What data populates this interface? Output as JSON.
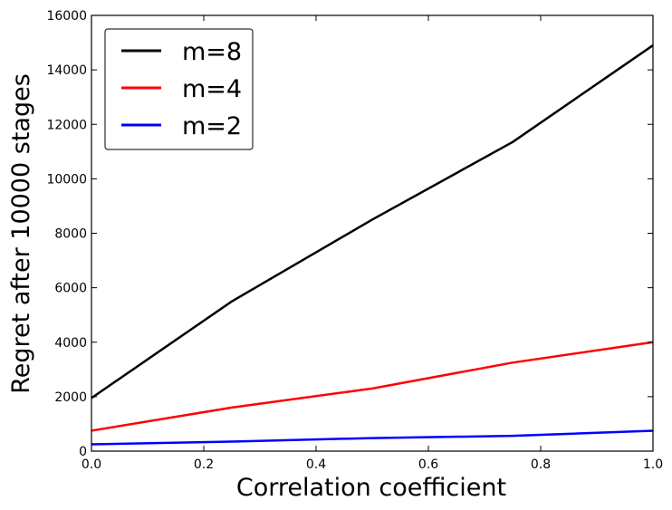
{
  "chart_data": {
    "type": "line",
    "title": "",
    "xlabel": "Correlation coefficient",
    "ylabel": "Regret after 10000 stages",
    "xlim": [
      0.0,
      1.0
    ],
    "ylim": [
      0,
      16000
    ],
    "x_ticks": [
      0.0,
      0.2,
      0.4,
      0.6,
      0.8,
      1.0
    ],
    "x_tick_labels": [
      "0.0",
      "0.2",
      "0.4",
      "0.6",
      "0.8",
      "1.0"
    ],
    "y_ticks": [
      0,
      2000,
      4000,
      6000,
      8000,
      10000,
      12000,
      14000,
      16000
    ],
    "y_tick_labels": [
      "0",
      "2000",
      "4000",
      "6000",
      "8000",
      "10000",
      "12000",
      "14000",
      "16000"
    ],
    "grid": false,
    "legend_position": "top-left",
    "x": [
      0.0,
      0.25,
      0.5,
      0.75,
      1.0
    ],
    "series": [
      {
        "name": "m=8",
        "color": "#000000",
        "values": [
          1950,
          5500,
          8500,
          11350,
          14900
        ]
      },
      {
        "name": "m=4",
        "color": "#ff0000",
        "values": [
          750,
          1600,
          2300,
          3250,
          4000
        ]
      },
      {
        "name": "m=2",
        "color": "#0000ff",
        "values": [
          250,
          350,
          480,
          560,
          750
        ]
      }
    ]
  }
}
